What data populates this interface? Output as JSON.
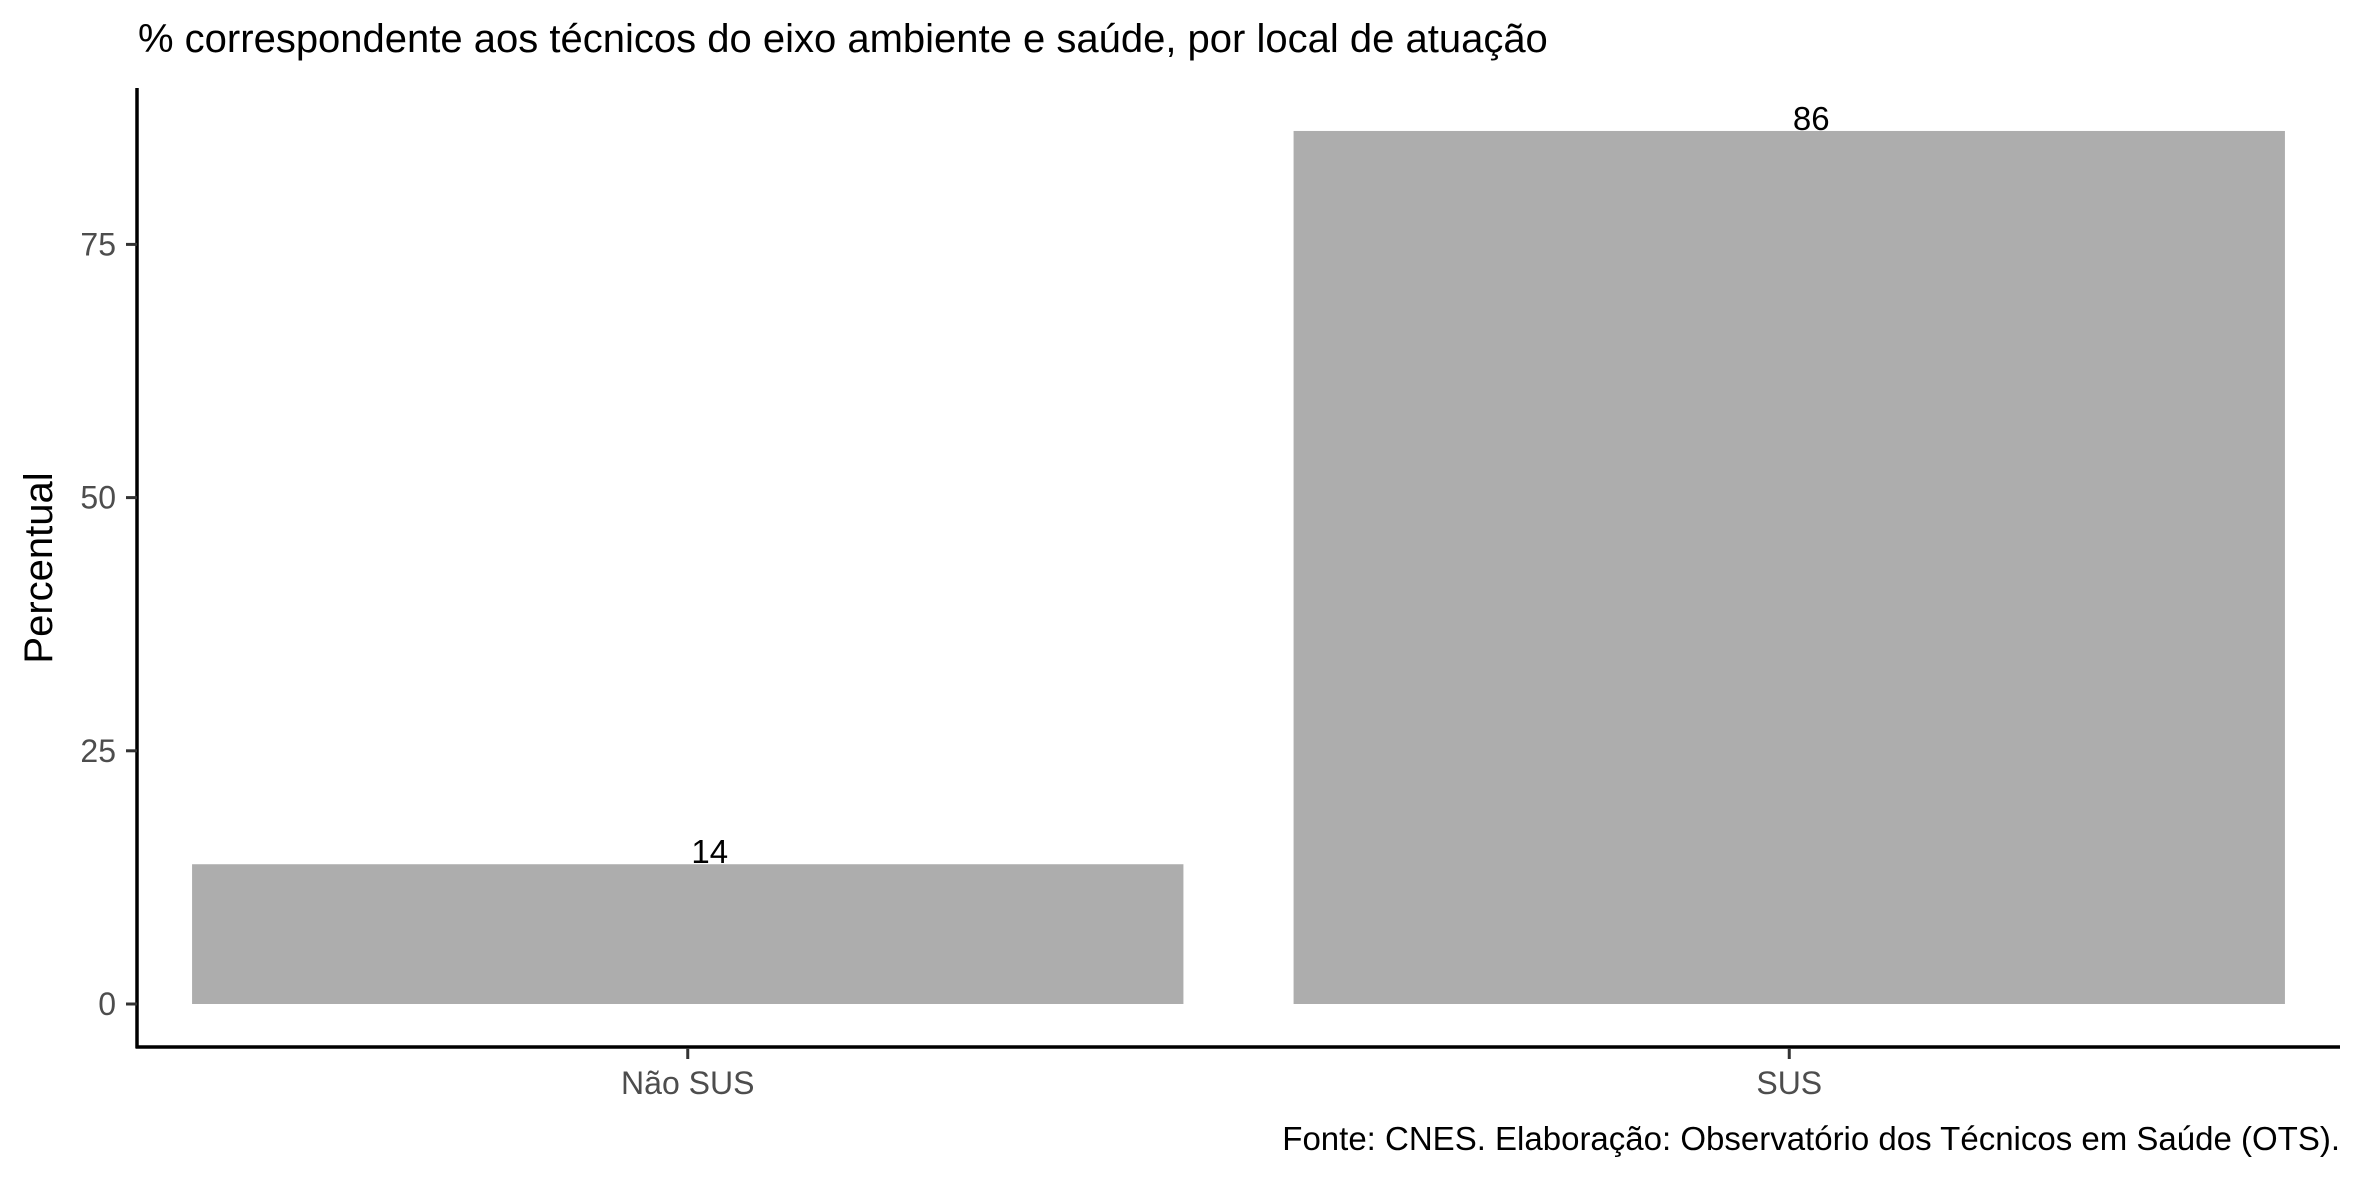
{
  "chart_data": {
    "type": "bar",
    "title": "% correspondente aos técnicos do eixo ambiente e saúde, por local de atuação",
    "xlabel": "",
    "ylabel": "Percentual",
    "categories": [
      "Não SUS",
      "SUS"
    ],
    "values": [
      13.8,
      86.2
    ],
    "data_labels": [
      "14",
      "86"
    ],
    "ylim": [
      0,
      90.5
    ],
    "yticks": [
      0,
      25,
      50,
      75
    ],
    "ytick_labels": [
      "0",
      "25",
      "50",
      "75"
    ],
    "bar_color": "#adadad",
    "grid": false,
    "legend": "none",
    "caption": "Fonte: CNES. Elaboração: Observatório dos Técnicos em Saúde (OTS)."
  }
}
